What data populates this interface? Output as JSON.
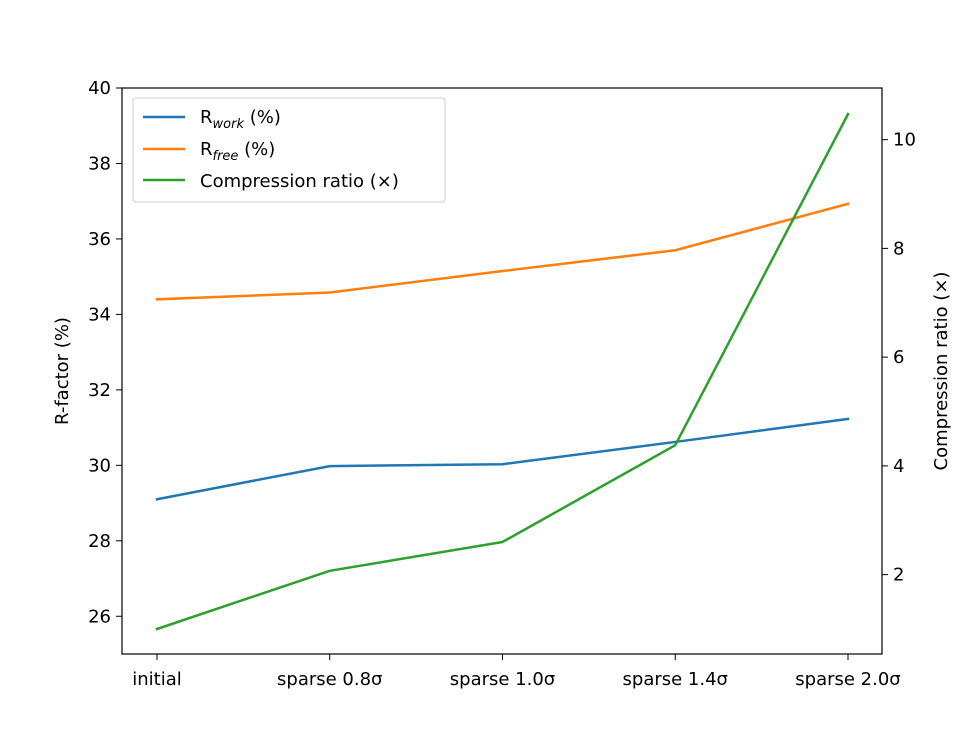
{
  "chart_data": {
    "type": "line",
    "categories": [
      "initial",
      "sparse 0.8σ",
      "sparse 1.0σ",
      "sparse 1.4σ",
      "sparse 2.0σ"
    ],
    "left_axis": {
      "label": "R-factor (%)",
      "range": [
        25.0,
        40.0
      ],
      "ticks": [
        "26",
        "28",
        "30",
        "32",
        "34",
        "36",
        "38",
        "40"
      ]
    },
    "right_axis": {
      "label": "Compression ratio (×)",
      "range": [
        0.54,
        10.95
      ],
      "ticks": [
        "2",
        "4",
        "6",
        "8",
        "10"
      ]
    },
    "series": [
      {
        "name": "R",
        "name_sub": "work",
        "name_suffix": " (%)",
        "axis": "left",
        "color": "#1f77b4",
        "values": [
          29.1,
          29.98,
          30.03,
          30.62,
          31.23
        ]
      },
      {
        "name": "R",
        "name_sub": "free",
        "name_suffix": " (%)",
        "axis": "left",
        "color": "#ff7f0e",
        "values": [
          34.4,
          34.58,
          35.15,
          35.7,
          36.93
        ]
      },
      {
        "name": "Compression ratio (×)",
        "axis": "right",
        "color": "#2ca02c",
        "values": [
          1.0,
          2.07,
          2.6,
          4.38,
          10.47
        ]
      }
    ],
    "legend_position": "upper-left",
    "grid": false
  }
}
